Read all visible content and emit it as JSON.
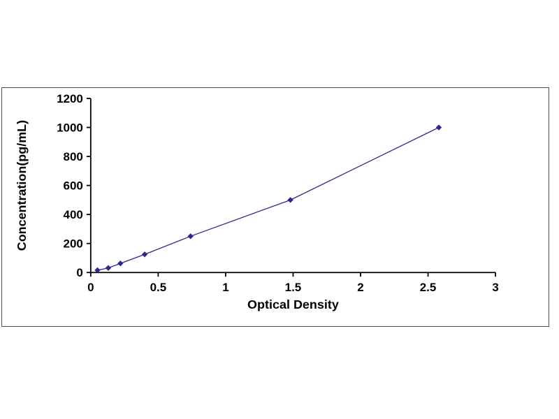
{
  "chart_data": {
    "type": "line",
    "title": "",
    "xlabel": "Optical Density",
    "ylabel": "Concentration(pg/mL)",
    "x": [
      0.05,
      0.13,
      0.22,
      0.4,
      0.74,
      1.48,
      2.58
    ],
    "y": [
      15.6,
      31.2,
      62.5,
      125,
      250,
      500,
      1000
    ],
    "xlim": [
      0,
      3
    ],
    "ylim": [
      0,
      1200
    ],
    "x_ticks": [
      0,
      0.5,
      1,
      1.5,
      2,
      2.5,
      3
    ],
    "x_tick_labels": [
      "0",
      "0.5",
      "1",
      "1.5",
      "2",
      "2.5",
      "3"
    ],
    "y_ticks": [
      0,
      200,
      400,
      600,
      800,
      1000,
      1200
    ],
    "y_tick_labels": [
      "0",
      "200",
      "400",
      "600",
      "800",
      "1000",
      "1200"
    ],
    "grid": false,
    "legend": "none",
    "marker": "diamond",
    "colors": {
      "line": "#2b2a8c",
      "marker": "#2b2a8c",
      "axis": "#000000",
      "frame_border": "#4d4d4d",
      "background": "#ffffff"
    }
  }
}
